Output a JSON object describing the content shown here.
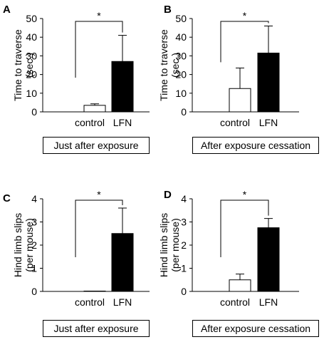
{
  "chart_data": [
    {
      "type": "bar",
      "panel_label": "A",
      "categories": [
        "control",
        "LFN"
      ],
      "values": [
        3.5,
        27
      ],
      "errors": [
        0.8,
        14
      ],
      "bar_fills": [
        "#ffffff",
        "#000000"
      ],
      "ylabel_line1": "Time to traverse",
      "ylabel_line2": "(sec.)",
      "ylim": [
        0,
        50
      ],
      "yticks": [
        0,
        10,
        20,
        30,
        40,
        50
      ],
      "significance": "*",
      "caption": "Just after exposure"
    },
    {
      "type": "bar",
      "panel_label": "B",
      "categories": [
        "control",
        "LFN"
      ],
      "values": [
        12.5,
        31.5
      ],
      "errors": [
        11,
        14.5
      ],
      "bar_fills": [
        "#ffffff",
        "#000000"
      ],
      "ylabel_line1": "Time to traverse",
      "ylabel_line2": "(sec.)",
      "ylim": [
        0,
        50
      ],
      "yticks": [
        0,
        10,
        20,
        30,
        40,
        50
      ],
      "significance": "*",
      "caption": "After exposure cessation"
    },
    {
      "type": "bar",
      "panel_label": "C",
      "categories": [
        "control",
        "LFN"
      ],
      "values": [
        0,
        2.5
      ],
      "errors": [
        0,
        1.1
      ],
      "bar_fills": [
        "#ffffff",
        "#000000"
      ],
      "ylabel_line1": "Hind limb slips",
      "ylabel_line2": "(per mouse)",
      "ylim": [
        0,
        4
      ],
      "yticks": [
        0,
        1,
        2,
        3,
        4
      ],
      "significance": "*",
      "caption": "Just after exposure"
    },
    {
      "type": "bar",
      "panel_label": "D",
      "categories": [
        "control",
        "LFN"
      ],
      "values": [
        0.5,
        2.75
      ],
      "errors": [
        0.25,
        0.4
      ],
      "bar_fills": [
        "#ffffff",
        "#000000"
      ],
      "ylabel_line1": "Hind limb slips",
      "ylabel_line2": "(per mouse)",
      "ylim": [
        0,
        4
      ],
      "yticks": [
        0,
        1,
        2,
        3,
        4
      ],
      "significance": "*",
      "caption": "After exposure cessation"
    }
  ]
}
